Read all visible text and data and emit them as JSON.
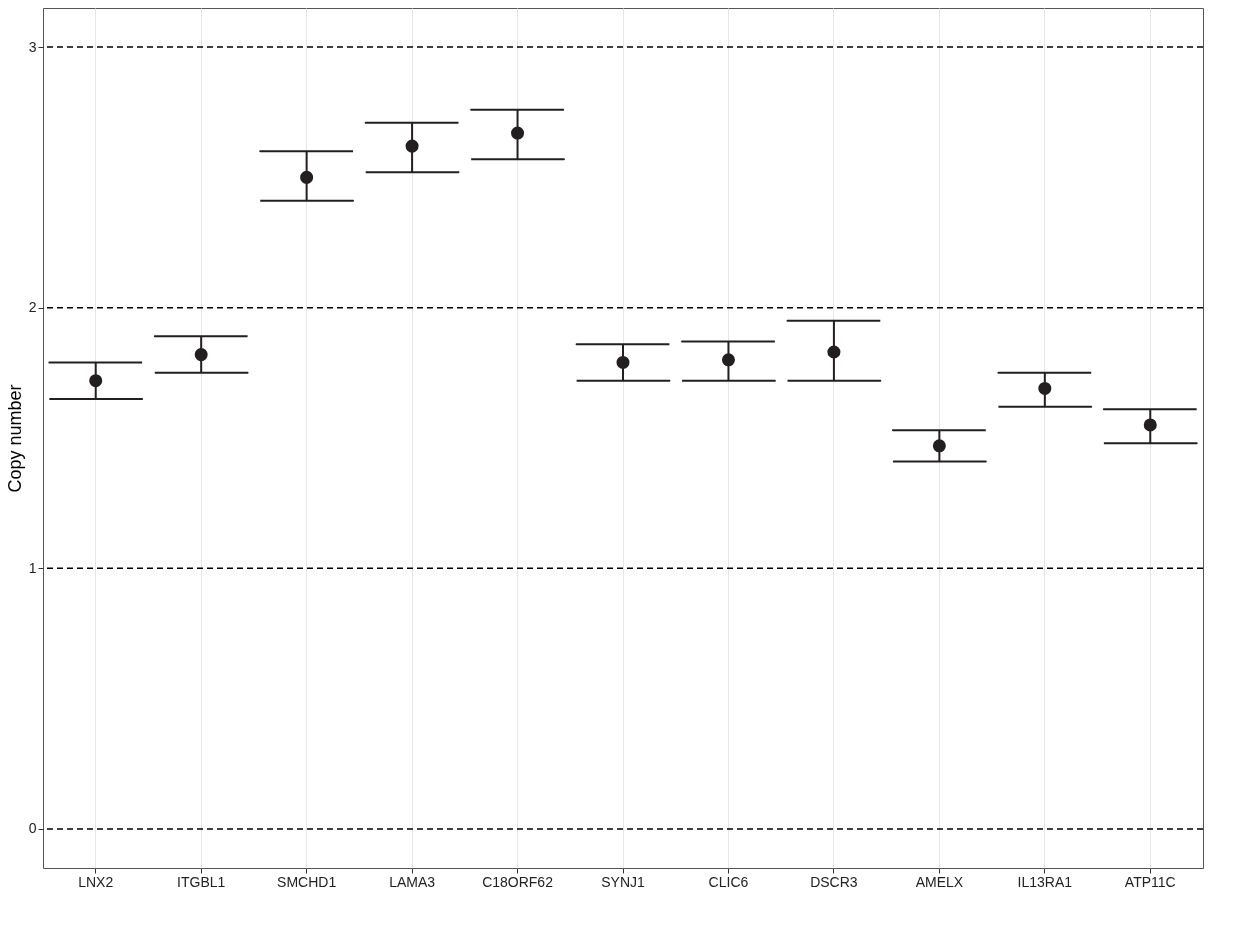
{
  "chart_data": {
    "type": "scatter",
    "ylabel": "Copy number",
    "categories": [
      "LNX2",
      "ITGBL1",
      "SMCHD1",
      "LAMA3",
      "C18ORF62",
      "SYNJ1",
      "CLIC6",
      "DSCR3",
      "AMELX",
      "IL13RA1",
      "ATP11C"
    ],
    "values": [
      1.72,
      1.82,
      2.5,
      2.62,
      2.67,
      1.79,
      1.8,
      1.83,
      1.47,
      1.69,
      1.55
    ],
    "errors": [
      [
        1.65,
        1.79
      ],
      [
        1.75,
        1.89
      ],
      [
        2.41,
        2.6
      ],
      [
        2.52,
        2.71
      ],
      [
        2.57,
        2.76
      ],
      [
        1.72,
        1.86
      ],
      [
        1.72,
        1.87
      ],
      [
        1.72,
        1.95
      ],
      [
        1.41,
        1.53
      ],
      [
        1.62,
        1.75
      ],
      [
        1.48,
        1.61
      ]
    ],
    "color": "#231f20",
    "marker": "circle",
    "grid": "x",
    "ylim": [
      -0.15,
      3.15
    ],
    "yticks": [
      {
        "value": 0,
        "label": "0"
      },
      {
        "value": 1,
        "label": "1"
      },
      {
        "value": 2,
        "label": "2"
      },
      {
        "value": 3,
        "label": "3"
      }
    ],
    "ref_lines": [
      {
        "axis": "y",
        "value": 0,
        "line_style": "dashed",
        "color": "#000000"
      },
      {
        "axis": "y",
        "value": 1,
        "line_style": "dashed",
        "color": "#000000"
      },
      {
        "axis": "y",
        "value": 2,
        "line_style": "dashed",
        "color": "#000000"
      },
      {
        "axis": "y",
        "value": 3,
        "line_style": "dashed",
        "color": "#000000"
      }
    ]
  }
}
